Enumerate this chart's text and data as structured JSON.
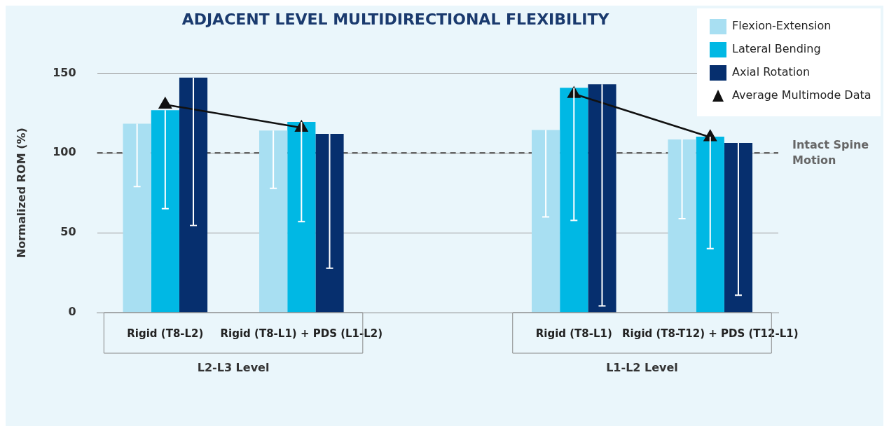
{
  "chart_data": {
    "type": "bar",
    "title": "ADJACENT LEVEL MULTIDIRECTIONAL FLEXIBILITY",
    "ylabel": "Normalized ROM (%)",
    "categories": [
      "Rigid (T8-L2)",
      "Rigid (T8-L1) + PDS (L1-L2)",
      null,
      "Rigid (T8-L1)",
      "Rigid (T8-T12) + PDS (T12-L1)"
    ],
    "series": [
      {
        "name": "Flexion-Extension",
        "color": "#a8dff2",
        "values": [
          118.3,
          114.1,
          null,
          114.4,
          108.5
        ],
        "errors": [
          [
            78.9,
            118.3
          ],
          [
            77.8,
            114.1
          ],
          null,
          [
            59.9,
            114.4
          ],
          [
            58.8,
            108.5
          ]
        ]
      },
      {
        "name": "Lateral Bending",
        "color": "#00b8e4",
        "values": [
          126.8,
          119.4,
          null,
          140.8,
          110.2
        ],
        "errors": [
          [
            65.1,
            126.8
          ],
          [
            57,
            119.4
          ],
          null,
          [
            57.7,
            140.8
          ],
          [
            40.1,
            110.2
          ]
        ]
      },
      {
        "name": "Axial Rotation",
        "color": "#062f6e",
        "values": [
          147.2,
          112,
          null,
          143,
          106.3
        ],
        "errors": [
          [
            54.6,
            147.2
          ],
          [
            27.8,
            112
          ],
          null,
          [
            4.2,
            143
          ],
          [
            10.9,
            106.3
          ]
        ]
      },
      {
        "name": "Average Multimode Data",
        "type": "line",
        "color": "#111111",
        "marker": "triangle",
        "values": [
          130.3,
          115.8,
          null,
          137,
          109.9
        ]
      }
    ],
    "ylim": [
      0,
      150
    ],
    "yticks": [
      0,
      50,
      100,
      150
    ],
    "grid": "y",
    "legend": "top right",
    "ref_lines": [
      {
        "axis": "y",
        "value": 100,
        "label": "Intact Spine Motion",
        "color": "#666666",
        "line_style": "dashed"
      }
    ],
    "annotations": [
      "L2-L3 Level",
      "L1-L2 Level"
    ]
  }
}
